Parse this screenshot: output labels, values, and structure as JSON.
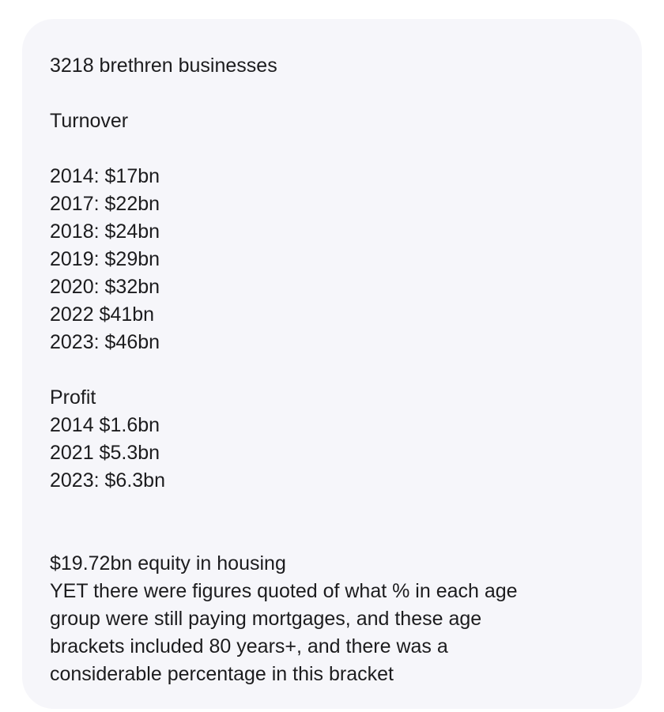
{
  "message": {
    "headline": "3218 brethren businesses",
    "turnover_heading": "Turnover",
    "turnover": [
      "2014: $17bn",
      "2017: $22bn",
      "2018: $24bn",
      "2019: $29bn",
      "2020: $32bn",
      "2022 $41bn",
      "2023: $46bn"
    ],
    "profit_heading": "Profit",
    "profit": [
      "2014 $1.6bn",
      "2021 $5.3bn",
      "2023: $6.3bn"
    ],
    "closing": [
      "$19.72bn equity in housing",
      "YET there were figures quoted of what % in each age",
      "group were still paying mortgages, and these age",
      "brackets included 80 years+, and there was a",
      "considerable percentage in this bracket"
    ]
  },
  "colors": {
    "bubble": "#f6f6fa",
    "text": "#1c1c1e"
  }
}
